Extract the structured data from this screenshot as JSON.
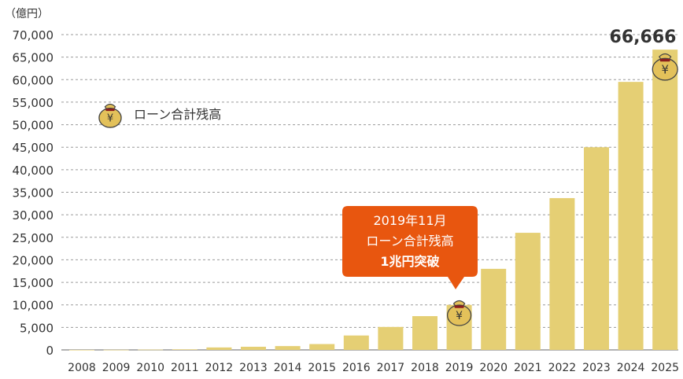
{
  "chart_data": {
    "type": "bar",
    "unit_label": "（億円）",
    "categories": [
      "2008",
      "2009",
      "2010",
      "2011",
      "2012",
      "2013",
      "2014",
      "2015",
      "2016",
      "2017",
      "2018",
      "2019",
      "2020",
      "2021",
      "2022",
      "2023",
      "2024",
      "2025"
    ],
    "values": [
      10,
      30,
      70,
      130,
      550,
      700,
      850,
      1300,
      3200,
      5100,
      7500,
      10000,
      18000,
      26000,
      33700,
      45000,
      59500,
      66666
    ],
    "yticks": [
      "70,000",
      "65,000",
      "60,000",
      "55,000",
      "50,000",
      "45,000",
      "40,000",
      "35,000",
      "30,000",
      "25,000",
      "20,000",
      "15,000",
      "10,000",
      "5,000",
      "0"
    ],
    "ylim": [
      0,
      70000
    ],
    "grid": true,
    "legend": {
      "label": "ローン合計残高",
      "icon": "money-bag-yen-icon",
      "placement": "upper-left"
    },
    "callout": {
      "lines": [
        "2019年11月",
        "ローン合計残高",
        "1兆円突破"
      ],
      "category": "2019"
    },
    "final_label": {
      "text": "66,666",
      "category": "2025"
    },
    "colors": {
      "bar": "#e5cf74",
      "callout": "#e8560f",
      "bag": "#e3c15a",
      "bag_tie": "#8b1d1d",
      "grid": "#9a9a9a",
      "text": "#333333"
    }
  }
}
